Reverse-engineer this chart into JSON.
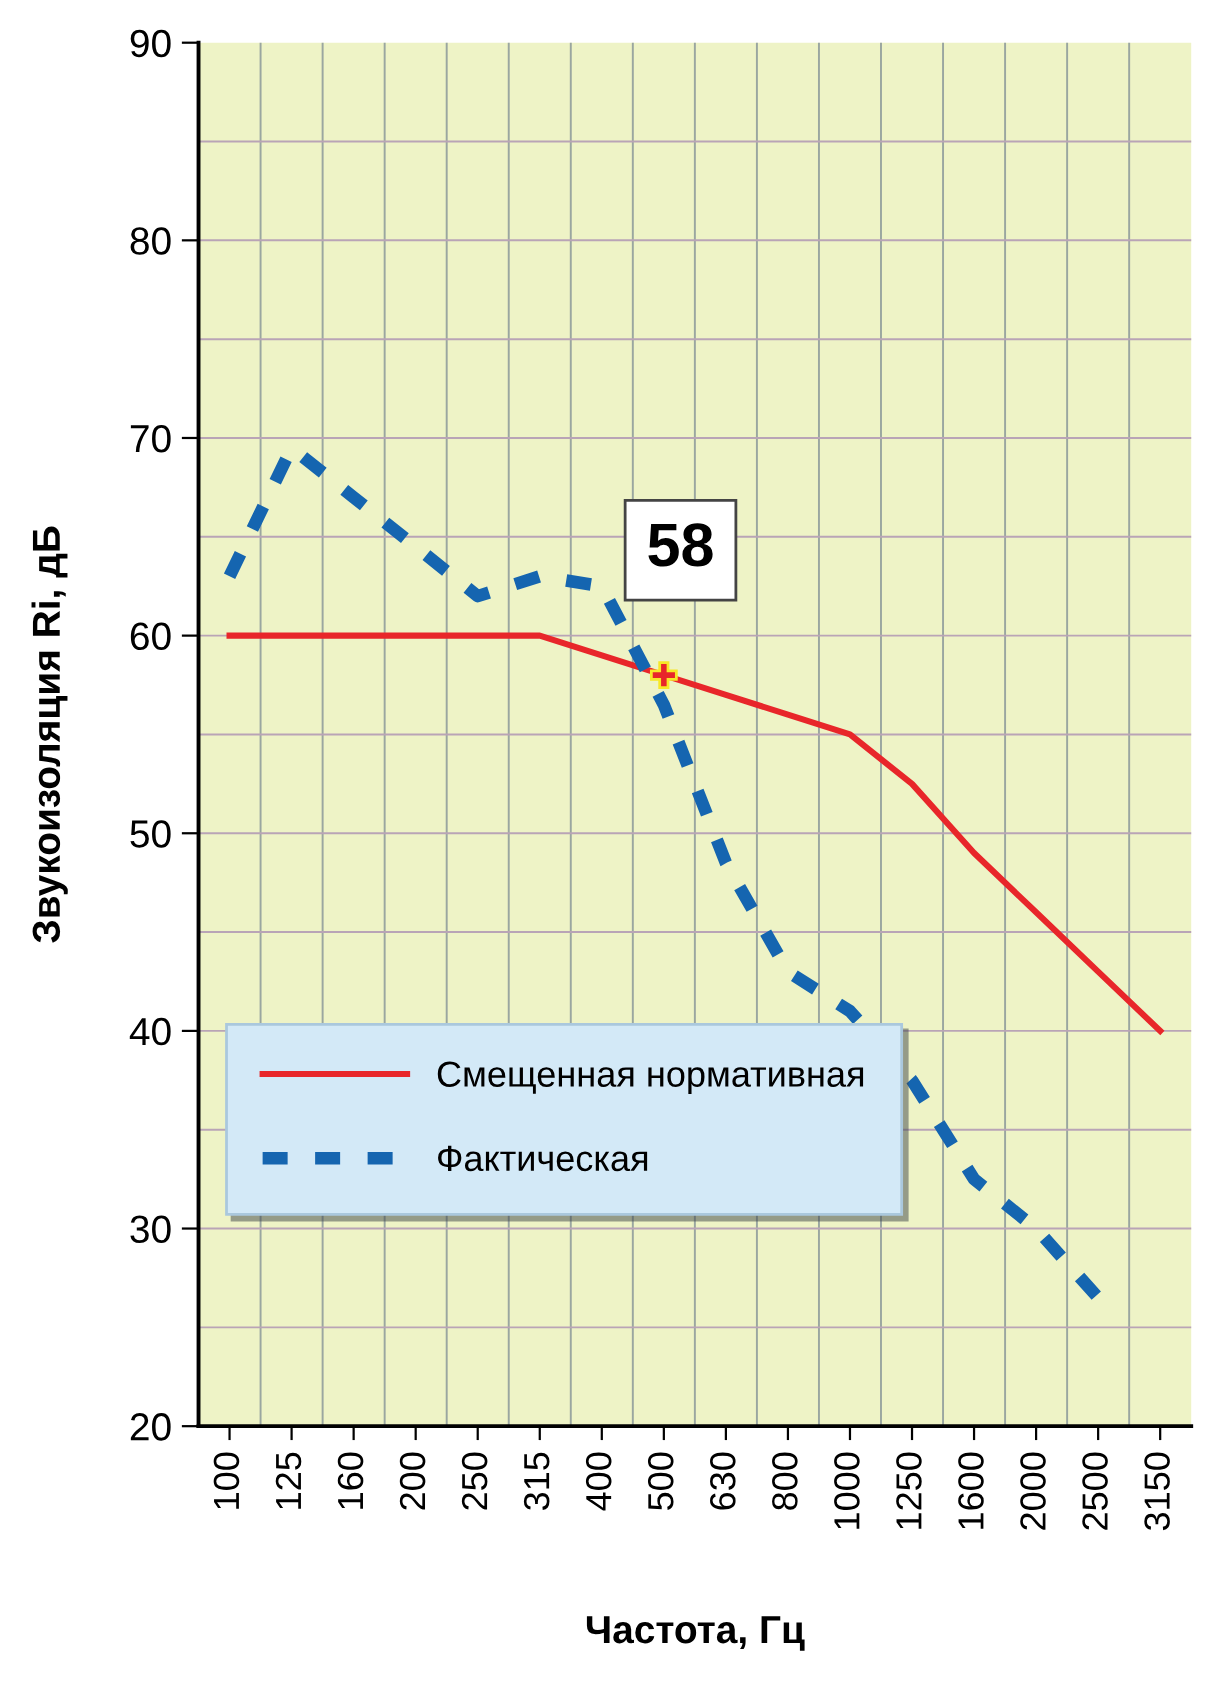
{
  "chart_data": {
    "type": "line",
    "xlabel": "Частота, Гц",
    "ylabel": "Звукоизоляция Ri, дБ",
    "categories": [
      "100",
      "125",
      "160",
      "200",
      "250",
      "315",
      "400",
      "500",
      "630",
      "800",
      "1000",
      "1250",
      "1600",
      "2000",
      "2500",
      "3150"
    ],
    "series": [
      {
        "name": "Смещенная нормативная",
        "color": "#e8262a",
        "line_style": "solid",
        "values": [
          60,
          60,
          60,
          60,
          60,
          60,
          59,
          58,
          57,
          56,
          55,
          52.5,
          49,
          46,
          43,
          40
        ]
      },
      {
        "name": "Фактическая",
        "color": "#1565b0",
        "line_style": "dashed",
        "values": [
          63,
          69.5,
          67,
          64.5,
          62,
          63,
          62.5,
          56.5,
          48.5,
          43,
          41,
          37.5,
          32.5,
          30,
          26.5,
          null
        ]
      }
    ],
    "ylim": [
      20,
      90
    ],
    "yticks": [
      20,
      30,
      40,
      50,
      60,
      70,
      80,
      90
    ],
    "grid": true,
    "legend": "bottom left",
    "marker": "none",
    "annotations": [
      {
        "text": "58",
        "x": "500",
        "y": 58
      }
    ]
  }
}
